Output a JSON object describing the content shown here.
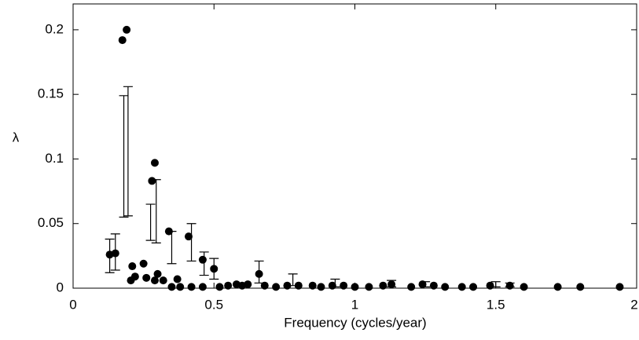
{
  "chart_data": {
    "type": "scatter",
    "xlabel": "Frequency (cycles/year)",
    "ylabel": "λ",
    "color": "#000000",
    "xlim": [
      0,
      2
    ],
    "ylim": [
      0,
      0.22
    ],
    "xticks": [
      0,
      0.5,
      1,
      1.5,
      2
    ],
    "yticks": [
      0,
      0.05,
      0.1,
      0.15,
      0.2
    ],
    "x": [
      0.13,
      0.15,
      0.175,
      0.19,
      0.205,
      0.21,
      0.22,
      0.25,
      0.26,
      0.28,
      0.29,
      0.29,
      0.3,
      0.32,
      0.34,
      0.35,
      0.37,
      0.38,
      0.41,
      0.42,
      0.46,
      0.46,
      0.5,
      0.52,
      0.55,
      0.58,
      0.6,
      0.62,
      0.66,
      0.68,
      0.72,
      0.76,
      0.8,
      0.85,
      0.88,
      0.92,
      0.96,
      1.0,
      1.05,
      1.1,
      1.13,
      1.2,
      1.24,
      1.28,
      1.32,
      1.38,
      1.42,
      1.48,
      1.55,
      1.6,
      1.72,
      1.8,
      1.94
    ],
    "values": [
      0.026,
      0.027,
      0.192,
      0.2,
      0.006,
      0.017,
      0.009,
      0.019,
      0.008,
      0.083,
      0.097,
      0.006,
      0.011,
      0.006,
      0.044,
      0.001,
      0.007,
      0.001,
      0.04,
      0.001,
      0.022,
      0.001,
      0.015,
      0.001,
      0.002,
      0.003,
      0.002,
      0.003,
      0.011,
      0.002,
      0.001,
      0.002,
      0.002,
      0.002,
      0.001,
      0.002,
      0.002,
      0.001,
      0.001,
      0.002,
      0.003,
      0.001,
      0.003,
      0.002,
      0.001,
      0.001,
      0.001,
      0.002,
      0.002,
      0.001,
      0.001,
      0.001,
      0.001
    ],
    "interval_x": [
      0.13,
      0.15,
      0.18,
      0.195,
      0.275,
      0.295,
      0.35,
      0.42,
      0.465,
      0.5,
      0.66,
      0.78,
      0.93,
      1.13,
      1.25,
      1.5,
      1.55
    ],
    "interval_low": [
      0.012,
      0.014,
      0.055,
      0.056,
      0.037,
      0.035,
      0.019,
      0.021,
      0.01,
      0.007,
      0.004,
      0.002,
      0.001,
      0.001,
      0.001,
      0.001,
      0.001
    ],
    "interval_high": [
      0.038,
      0.042,
      0.149,
      0.156,
      0.065,
      0.084,
      0.044,
      0.05,
      0.028,
      0.023,
      0.021,
      0.011,
      0.007,
      0.006,
      0.005,
      0.005,
      0.004
    ]
  }
}
